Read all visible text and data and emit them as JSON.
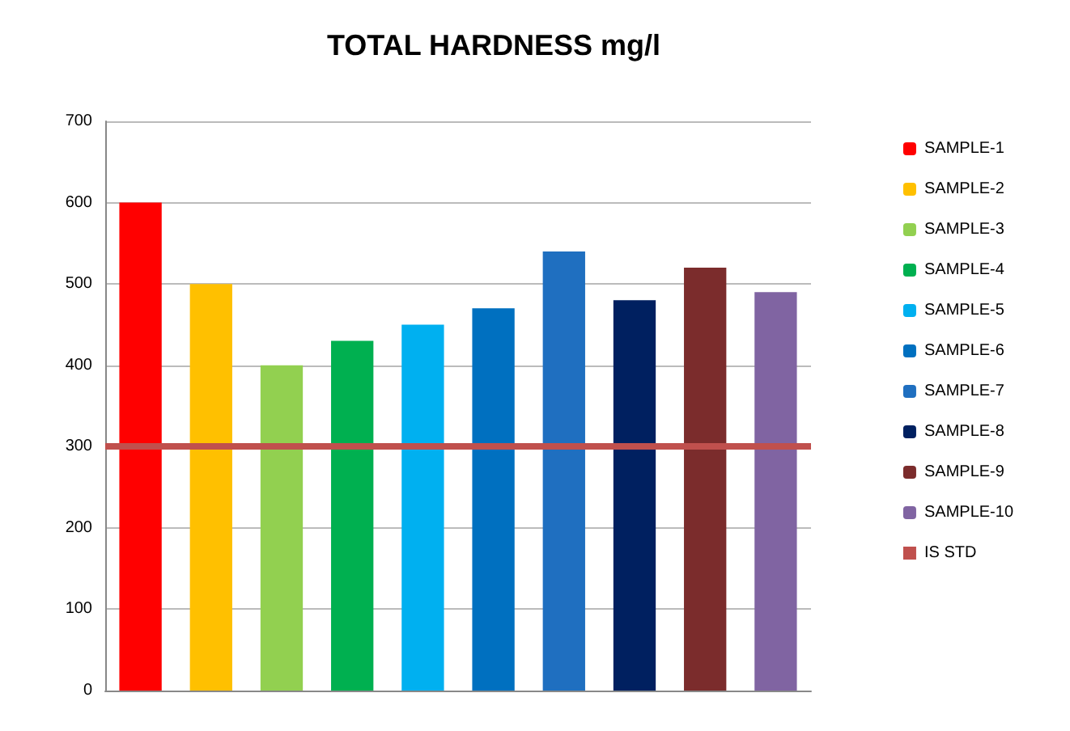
{
  "chart_data": {
    "type": "bar",
    "title": "TOTAL HARDNESS mg/l",
    "categories": [
      null,
      null,
      null,
      null,
      null,
      null,
      null,
      null,
      null,
      null
    ],
    "series": [
      {
        "name": "SAMPLE-1",
        "color": "#ff0000",
        "values": [
          600,
          null,
          null,
          null,
          null,
          null,
          null,
          null,
          null,
          null
        ]
      },
      {
        "name": "SAMPLE-2",
        "color": "#ffc000",
        "values": [
          null,
          500,
          null,
          null,
          null,
          null,
          null,
          null,
          null,
          null
        ]
      },
      {
        "name": "SAMPLE-3",
        "color": "#92d050",
        "values": [
          null,
          null,
          400,
          null,
          null,
          null,
          null,
          null,
          null,
          null
        ]
      },
      {
        "name": "SAMPLE-4",
        "color": "#00b050",
        "values": [
          null,
          null,
          null,
          430,
          null,
          null,
          null,
          null,
          null,
          null
        ]
      },
      {
        "name": "SAMPLE-5",
        "color": "#00b0f0",
        "values": [
          null,
          null,
          null,
          null,
          450,
          null,
          null,
          null,
          null,
          null
        ]
      },
      {
        "name": "SAMPLE-6",
        "color": "#0070c0",
        "values": [
          null,
          null,
          null,
          null,
          null,
          470,
          null,
          null,
          null,
          null
        ]
      },
      {
        "name": "SAMPLE-7",
        "color": "#1f6fc0",
        "values": [
          null,
          null,
          null,
          null,
          null,
          null,
          540,
          null,
          null,
          null
        ]
      },
      {
        "name": "SAMPLE-8",
        "color": "#002060",
        "values": [
          null,
          null,
          null,
          null,
          null,
          null,
          null,
          480,
          null,
          null
        ]
      },
      {
        "name": "SAMPLE-9",
        "color": "#7b2c2c",
        "values": [
          null,
          null,
          null,
          null,
          null,
          null,
          null,
          null,
          520,
          null
        ]
      },
      {
        "name": "SAMPLE-10",
        "color": "#8064a2",
        "values": [
          null,
          null,
          null,
          null,
          null,
          null,
          null,
          null,
          null,
          490
        ]
      }
    ],
    "ylim": [
      0,
      700
    ],
    "yticks": [
      0,
      100,
      200,
      300,
      400,
      500,
      600,
      700
    ],
    "grid": "y",
    "legend": "right",
    "ref_lines": [
      {
        "axis": "y",
        "value": 300,
        "label": "IS STD",
        "color": "#c0504d"
      }
    ]
  }
}
